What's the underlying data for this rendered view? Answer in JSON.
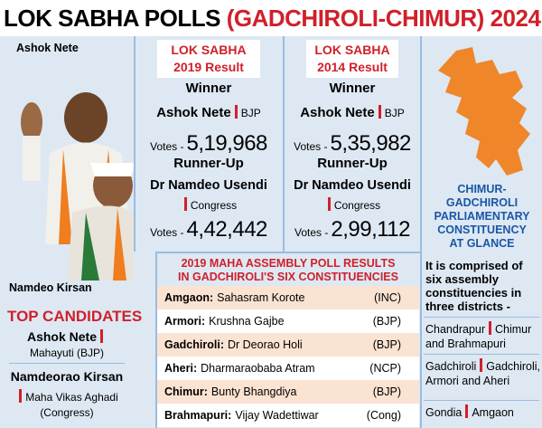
{
  "header": {
    "title_main": "LOK SABHA POLLS",
    "title_highlight": "(GADCHIROLI-CHIMUR) 2024"
  },
  "photos": {
    "label_top": "Ashok Nete",
    "label_bottom": "Namdeo Kirsan"
  },
  "top_candidates": {
    "heading": "TOP CANDIDATES",
    "candidates": [
      {
        "name": "Ashok Nete",
        "alliance": "Mahayuti (BJP)"
      },
      {
        "name": "Namdeorao Kirsan",
        "alliance": "Maha Vikas Aghadi",
        "party": "(Congress)"
      }
    ]
  },
  "results": [
    {
      "title": "LOK SABHA",
      "year_label": "2019 Result",
      "winner_heading": "Winner",
      "winner_name": "Ashok Nete",
      "winner_party": "BJP",
      "votes_label": "Votes -",
      "winner_votes": "5,19,968",
      "runner_heading": "Runner-Up",
      "runner_name": "Dr Namdeo Usendi",
      "runner_party": "Congress",
      "runner_votes": "4,42,442"
    },
    {
      "title": "LOK SABHA",
      "year_label": "2014 Result",
      "winner_heading": "Winner",
      "winner_name": "Ashok Nete",
      "winner_party": "BJP",
      "votes_label": "Votes -",
      "winner_votes": "5,35,982",
      "runner_heading": "Runner-Up",
      "runner_name": "Dr Namdeo Usendi",
      "runner_party": "Congress",
      "runner_votes": "2,99,112"
    }
  ],
  "assembly": {
    "title_lines": [
      "2019 MAHA ASSEMBLY POLL RESULTS",
      "IN GADCHIROLI'S SIX CONSTITUENCIES"
    ],
    "rows": [
      {
        "constituency": "Amgaon:",
        "winner": "Sahasram Korote",
        "party": "(INC)"
      },
      {
        "constituency": "Armori:",
        "winner": "Krushna Gajbe",
        "party": "(BJP)"
      },
      {
        "constituency": "Gadchiroli:",
        "winner": "Dr Deorao Holi",
        "party": "(BJP)"
      },
      {
        "constituency": "Aheri:",
        "winner": "Dharmaraobaba Atram",
        "party": "(NCP)"
      },
      {
        "constituency": "Chimur:",
        "winner": "Bunty Bhangdiya",
        "party": "(BJP)"
      },
      {
        "constituency": "Brahmapuri:",
        "winner": "Vijay Wadettiwar",
        "party": "(Cong)"
      }
    ]
  },
  "glance": {
    "heading_lines": [
      "CHIMUR-",
      "GADCHIROLI",
      "PARLIAMENTARY",
      "CONSTITUENCY",
      "AT GLANCE"
    ],
    "intro": "It is comprised of six assembly constituencies in three districts -",
    "districts": [
      {
        "district": "Chandrapur",
        "seats": "Chimur and Brahmapuri"
      },
      {
        "district": "Gadchiroli",
        "seats": "Gadchiroli, Armori and Aheri"
      },
      {
        "district": "Gondia",
        "seats": "Amgaon"
      }
    ]
  }
}
